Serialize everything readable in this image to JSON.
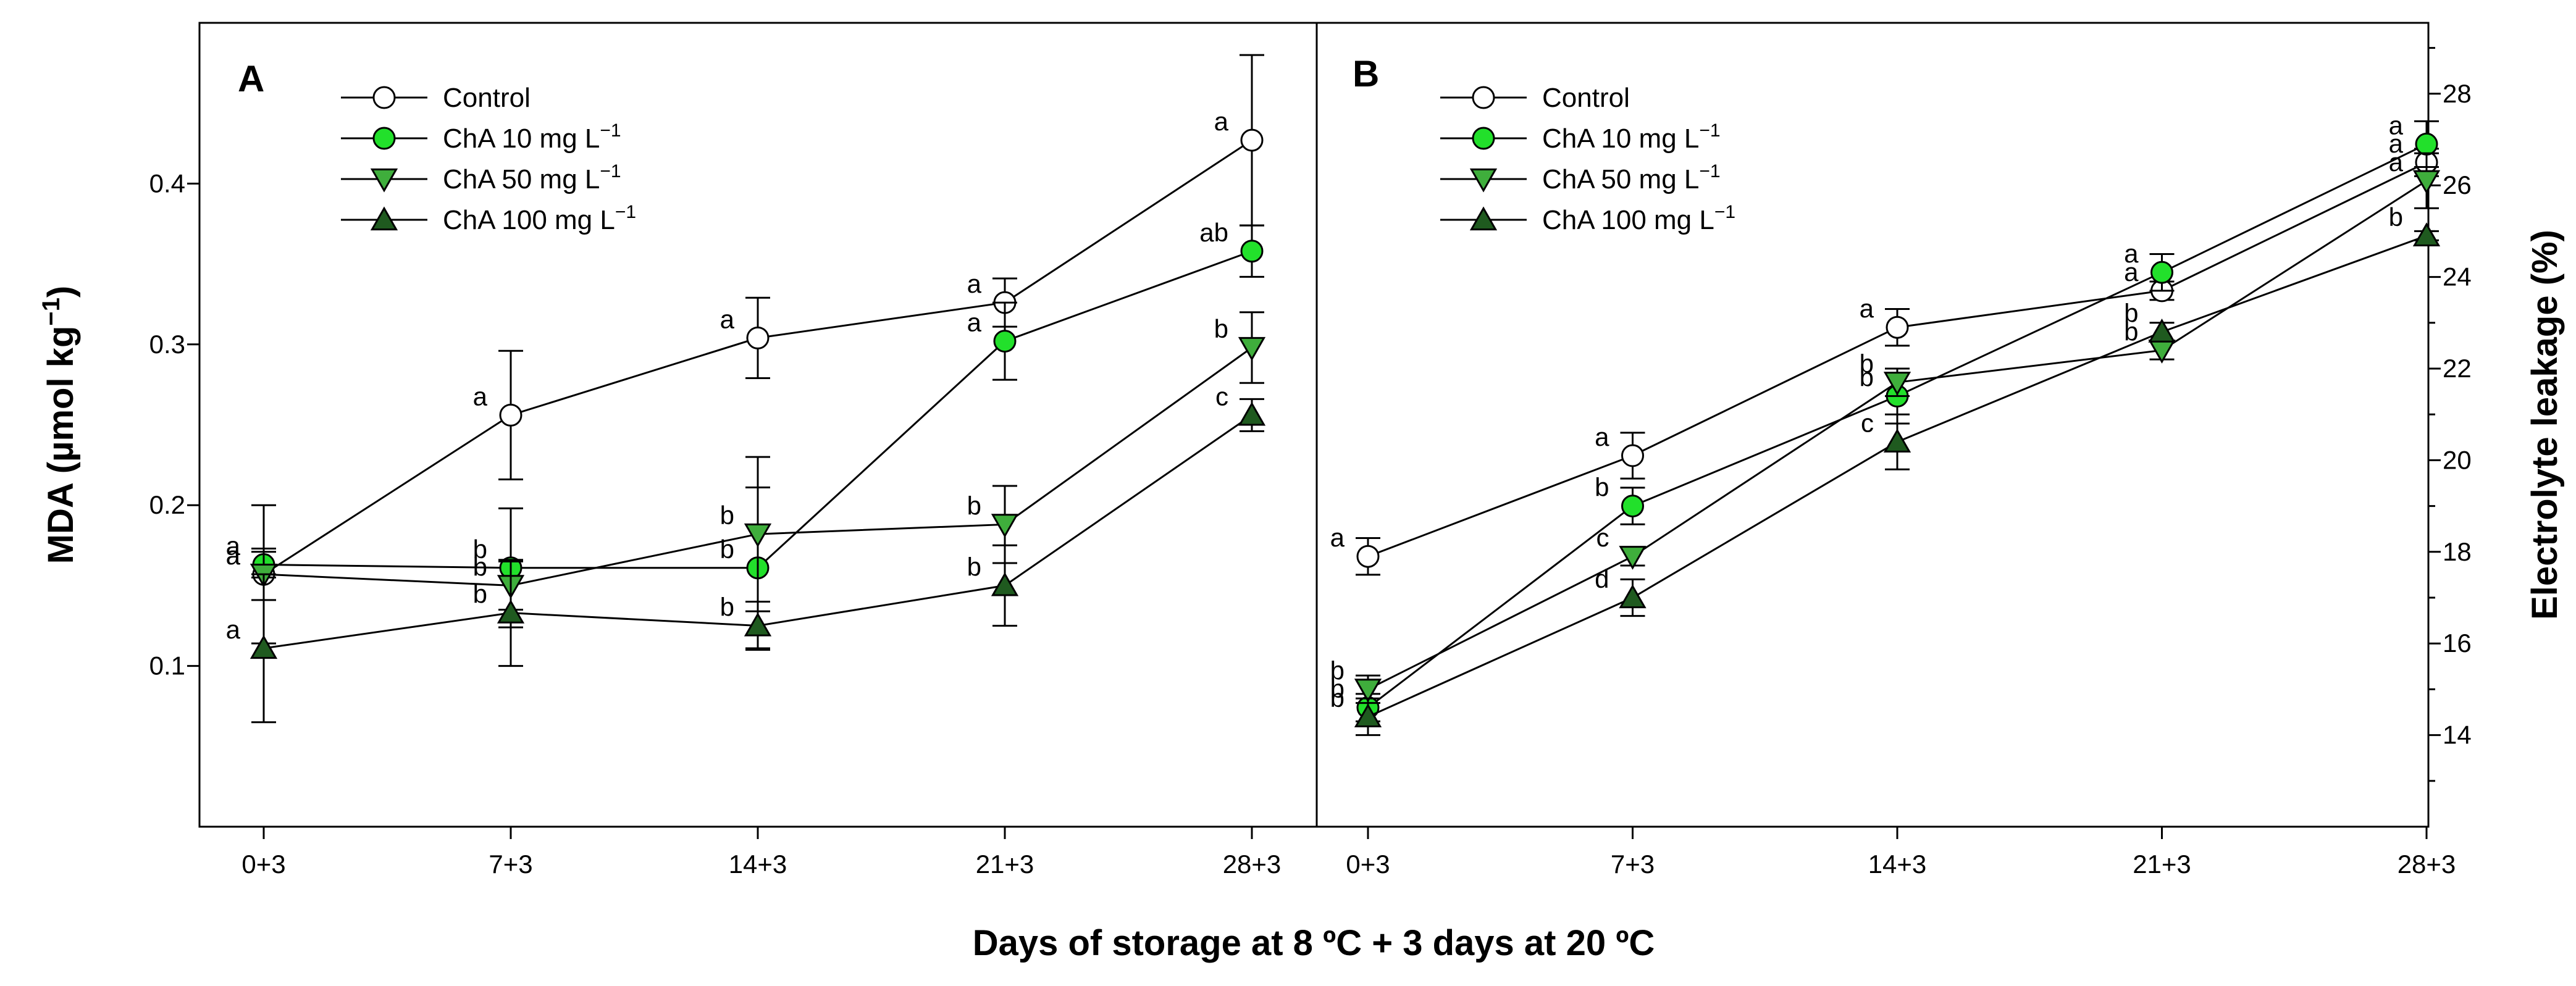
{
  "x_title": "Days of storage at 8 ºC + 3 days at 20 ºC",
  "colors": {
    "control": "#ffffff",
    "cha10": "#22e02b",
    "cha50": "#3fae3c",
    "cha100": "#1f5a1f",
    "stroke": "#000000"
  },
  "chart_data": [
    {
      "type": "line",
      "panel": "A",
      "ylabel": "MDA (µmol kg",
      "ylabel_sup": "−1",
      "ylabel_end": ")",
      "ylim": [
        0.0,
        0.5
      ],
      "yticks": [
        "0.1",
        "0.2",
        "0.3",
        "0.4"
      ],
      "categories": [
        "0+3",
        "7+3",
        "14+3",
        "21+3",
        "28+3"
      ],
      "legend_position": "top-left",
      "series": [
        {
          "name": "Control",
          "legend_main": "Control",
          "legend_sup": "",
          "values": [
            0.157,
            0.256,
            0.304,
            0.326,
            0.427
          ],
          "errors": [
            0.016,
            0.04,
            0.025,
            0.015,
            0.053
          ],
          "labels": [
            "a",
            "a",
            "a",
            "a",
            "a"
          ]
        },
        {
          "name": "ChA 10 mg L-1",
          "legend_main": "ChA 10 mg L",
          "legend_sup": "−1",
          "values": [
            0.163,
            0.161,
            0.161,
            0.302,
            0.358
          ],
          "errors": [
            0.008,
            0.037,
            0.05,
            0.024,
            0.016
          ],
          "labels": [
            "a",
            "b",
            "b",
            "a",
            "ab"
          ]
        },
        {
          "name": "ChA 50 mg L-1",
          "legend_main": "ChA 50 mg L",
          "legend_sup": "−1",
          "values": [
            0.157,
            0.15,
            0.182,
            0.188,
            0.298
          ],
          "errors": [
            0.043,
            0.015,
            0.048,
            0.024,
            0.022
          ],
          "labels": [
            "a",
            "b",
            "b",
            "b",
            "b"
          ]
        },
        {
          "name": "ChA 100 mg L-1",
          "legend_main": "ChA 100 mg L",
          "legend_sup": "−1",
          "values": [
            0.111,
            0.133,
            0.125,
            0.15,
            0.256
          ],
          "errors": [
            0.046,
            0.033,
            0.015,
            0.025,
            0.01
          ],
          "labels": [
            "a",
            "b",
            "b",
            "b",
            "c"
          ]
        }
      ]
    },
    {
      "type": "line",
      "panel": "B",
      "ylabel": "Electrolyte leakage (%)",
      "ylim": [
        12,
        30
      ],
      "yticks": [
        "14",
        "16",
        "18",
        "20",
        "22",
        "24",
        "26",
        "28"
      ],
      "categories": [
        "0+3",
        "7+3",
        "14+3",
        "21+3",
        "28+3"
      ],
      "legend_position": "top-left",
      "series": [
        {
          "name": "Control",
          "legend_main": "Control",
          "legend_sup": "",
          "values": [
            17.9,
            20.1,
            22.9,
            23.7,
            26.5
          ],
          "errors": [
            0.4,
            0.5,
            0.4,
            0.2,
            0.3
          ],
          "labels": [
            "a",
            "a",
            "a",
            "a",
            "a"
          ]
        },
        {
          "name": "ChA 10 mg L-1",
          "legend_main": "ChA 10 mg L",
          "legend_sup": "−1",
          "values": [
            14.6,
            19.0,
            21.4,
            24.1,
            26.9
          ],
          "errors": [
            0.3,
            0.4,
            0.6,
            0.4,
            0.5
          ],
          "labels": [
            "b",
            "b",
            "b",
            "a",
            "a"
          ]
        },
        {
          "name": "ChA 50 mg L-1",
          "legend_main": "ChA 50 mg L",
          "legend_sup": "−1",
          "values": [
            15.0,
            17.9,
            21.7,
            22.4,
            26.1
          ],
          "errors": [
            0.3,
            0.2,
            0.3,
            0.2,
            0.6
          ],
          "labels": [
            "b",
            "c",
            "b",
            "b",
            "a"
          ]
        },
        {
          "name": "ChA 100 mg L-1",
          "legend_main": "ChA 100 mg L",
          "legend_sup": "−1",
          "values": [
            14.4,
            17.0,
            20.4,
            22.8,
            24.9
          ],
          "errors": [
            0.4,
            0.4,
            0.6,
            0.2,
            0.1
          ],
          "labels": [
            "b",
            "d",
            "c",
            "b",
            "b"
          ]
        }
      ]
    }
  ]
}
